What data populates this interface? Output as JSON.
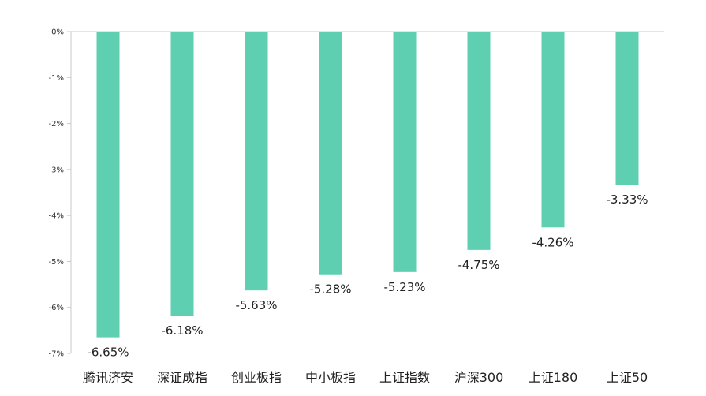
{
  "chart_data": {
    "type": "bar",
    "categories": [
      "腾讯济安",
      "深证成指",
      "创业板指",
      "中小板指",
      "上证指数",
      "沪深300",
      "上证180",
      "上证50"
    ],
    "values": [
      -6.65,
      -6.18,
      -5.63,
      -5.28,
      -5.23,
      -4.75,
      -4.26,
      -3.33
    ],
    "data_labels": [
      "-6.65%",
      "-6.18%",
      "-5.63%",
      "-5.28%",
      "-5.23%",
      "-4.75%",
      "-4.26%",
      "-3.33%"
    ],
    "y_ticks": [
      0,
      -1,
      -2,
      -3,
      -4,
      -5,
      -6,
      -7
    ],
    "y_tick_labels": [
      "0%",
      "-1%",
      "-2%",
      "-3%",
      "-4%",
      "-5%",
      "-6%",
      "-7%"
    ],
    "ylim": [
      -7,
      0
    ],
    "title": "",
    "xlabel": "",
    "ylabel": "",
    "grid": false,
    "legend": "none",
    "bar_color": "#5ecfb1",
    "axis_color": "#c8c8c8"
  }
}
